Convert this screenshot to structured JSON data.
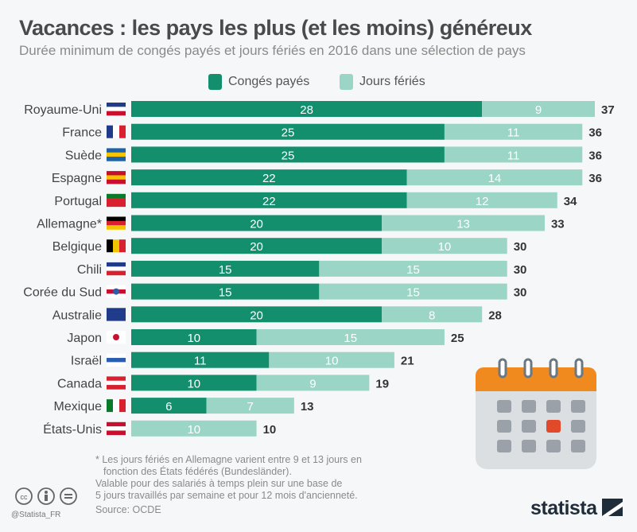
{
  "title": "Vacances : les pays les plus (et les moins) généreux",
  "subtitle": "Durée minimum de congés payés et jours fériés en 2016 dans une sélection de pays",
  "colors": {
    "conges": "#138f6e",
    "feries": "#9ad5c5",
    "background": "#f6f7f8"
  },
  "chart_data": {
    "type": "bar",
    "orientation": "horizontal-stacked",
    "categories": [
      "Royaume-Uni",
      "France",
      "Suède",
      "Espagne",
      "Portugal",
      "Allemagne*",
      "Belgique",
      "Chili",
      "Corée du Sud",
      "Australie",
      "Japon",
      "Israël",
      "Canada",
      "Mexique",
      "États-Unis"
    ],
    "series": [
      {
        "name": "Congés payés",
        "values": [
          28,
          25,
          25,
          22,
          22,
          20,
          20,
          15,
          15,
          20,
          10,
          11,
          10,
          6,
          0
        ]
      },
      {
        "name": "Jours fériés",
        "values": [
          9,
          11,
          11,
          14,
          12,
          13,
          10,
          15,
          15,
          8,
          15,
          10,
          9,
          7,
          10
        ]
      }
    ],
    "totals": [
      37,
      36,
      36,
      36,
      34,
      33,
      30,
      30,
      30,
      28,
      25,
      21,
      19,
      13,
      10
    ],
    "xlim": [
      0,
      37
    ],
    "grid": false,
    "legend": "top"
  },
  "flags": [
    "uk-flag",
    "france-flag",
    "sweden-flag",
    "spain-flag",
    "portugal-flag",
    "germany-flag",
    "belgium-flag",
    "chile-flag",
    "south-korea-flag",
    "australia-flag",
    "japan-flag",
    "israel-flag",
    "canada-flag",
    "mexico-flag",
    "usa-flag"
  ],
  "notes": [
    "* Les jours fériés en Allemagne varient entre 9 et 13 jours en",
    "fonction des États fédérés (Bundesländer).",
    "Valable pour des salariés à temps plein sur une base de",
    "5 jours travaillés par semaine et pour 12 mois d'ancienneté."
  ],
  "source": "Source: OCDE",
  "handle": "@Statista_FR",
  "logo": "statista"
}
